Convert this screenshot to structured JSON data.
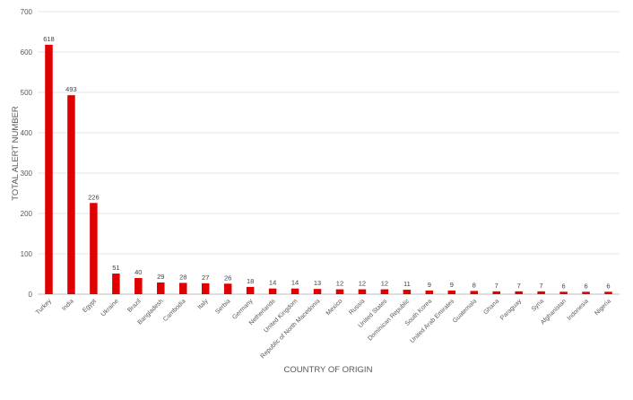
{
  "chart_data": {
    "type": "bar",
    "title": "",
    "xlabel": "COUNTRY OF ORIGIN",
    "ylabel": "TOTAL ALERT NUMBER",
    "ylim": [
      0,
      700
    ],
    "yticks": [
      0,
      100,
      200,
      300,
      400,
      500,
      600,
      700
    ],
    "grid": true,
    "legend": "none",
    "bar_color": "#e00000",
    "categories": [
      "Turkey",
      "India",
      "Egypt",
      "Ukraine",
      "Brazil",
      "Bangladesh",
      "Cambodia",
      "Italy",
      "Serbia",
      "Germany",
      "Netherlands",
      "United Kingdom",
      "Republic of North Macedonia",
      "Mexico",
      "Russia",
      "United States",
      "Dominican Republic",
      "South Korea",
      "United Arab Emirates",
      "Guatemala",
      "Ghana",
      "Paraguay",
      "Syria",
      "Afghanistan",
      "Indonesia",
      "Nigeria"
    ],
    "values": [
      618,
      493,
      226,
      51,
      40,
      29,
      28,
      27,
      26,
      18,
      14,
      14,
      13,
      12,
      12,
      12,
      11,
      9,
      9,
      8,
      7,
      7,
      7,
      6,
      6,
      6
    ]
  }
}
